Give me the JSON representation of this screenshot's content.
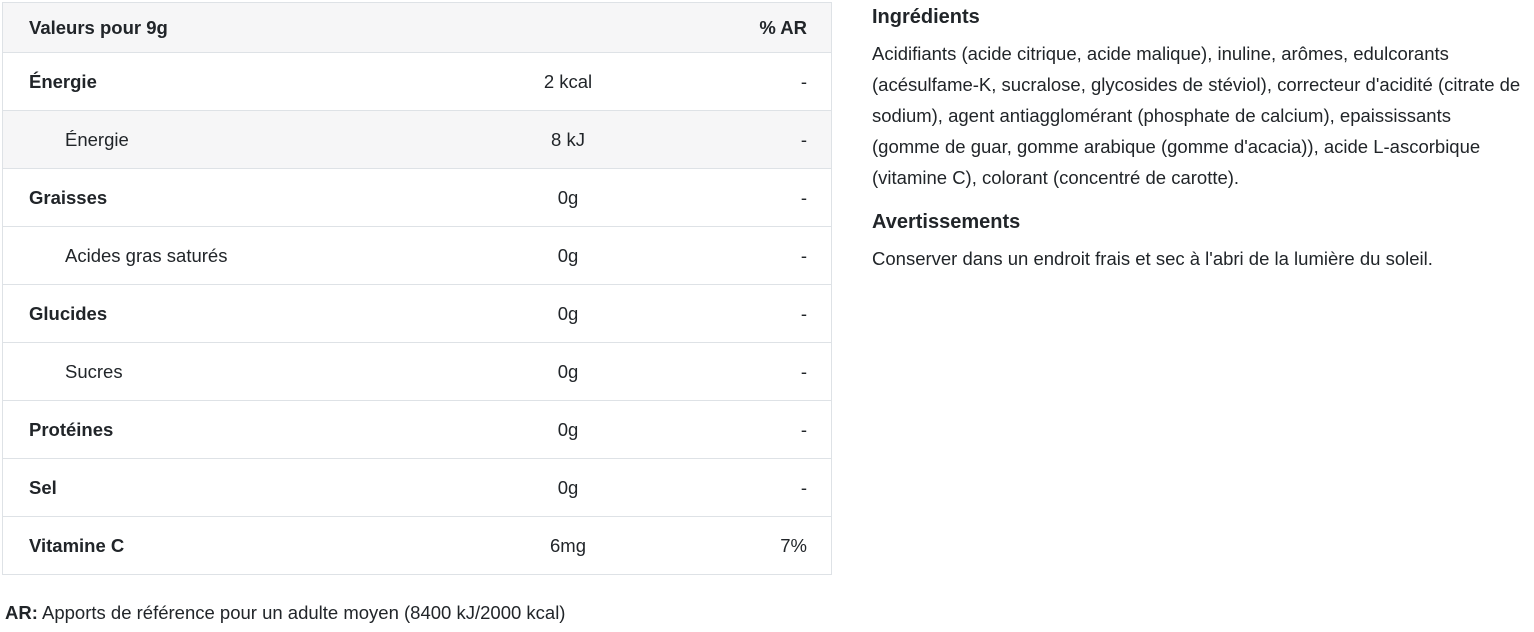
{
  "colors": {
    "text": "#212529",
    "border": "#dee2e6",
    "shaded_bg": "#f6f6f7",
    "background": "#ffffff"
  },
  "nutrition_table": {
    "header": {
      "label": "Valeurs pour 9g",
      "ar": "% AR"
    },
    "rows": [
      {
        "label": "Énergie",
        "value": "2 kcal",
        "ar": "-",
        "bold": true,
        "indent": false,
        "shaded": false
      },
      {
        "label": "Énergie",
        "value": "8 kJ",
        "ar": "-",
        "bold": false,
        "indent": true,
        "shaded": true
      },
      {
        "label": "Graisses",
        "value": "0g",
        "ar": "-",
        "bold": true,
        "indent": false,
        "shaded": false
      },
      {
        "label": "Acides gras saturés",
        "value": "0g",
        "ar": "-",
        "bold": false,
        "indent": true,
        "shaded": false
      },
      {
        "label": "Glucides",
        "value": "0g",
        "ar": "-",
        "bold": true,
        "indent": false,
        "shaded": false
      },
      {
        "label": "Sucres",
        "value": "0g",
        "ar": "-",
        "bold": false,
        "indent": true,
        "shaded": false
      },
      {
        "label": "Protéines",
        "value": "0g",
        "ar": "-",
        "bold": true,
        "indent": false,
        "shaded": false
      },
      {
        "label": "Sel",
        "value": "0g",
        "ar": "-",
        "bold": true,
        "indent": false,
        "shaded": false
      },
      {
        "label": "Vitamine C",
        "value": "6mg",
        "ar": "7%",
        "bold": true,
        "indent": false,
        "shaded": false
      }
    ],
    "footnote_prefix": "AR:",
    "footnote_text": "Apports de référence pour un adulte moyen (8400 kJ/2000 kcal)"
  },
  "ingredients": {
    "title": "Ingrédients",
    "text": "Acidifiants (acide citrique, acide malique), inuline, arômes, edulcorants (acésulfame-K, sucralose, glycosides de stéviol), correcteur d'acidité (citrate de sodium), agent antiagglomérant (phosphate de calcium), epaississants (gomme de guar, gomme arabique (gomme d'acacia)), acide L-ascorbique (vitamine C), colorant (concentré de carotte)."
  },
  "warnings": {
    "title": "Avertissements",
    "text": "Conserver dans un endroit frais et sec à l'abri de la lumière du soleil."
  }
}
